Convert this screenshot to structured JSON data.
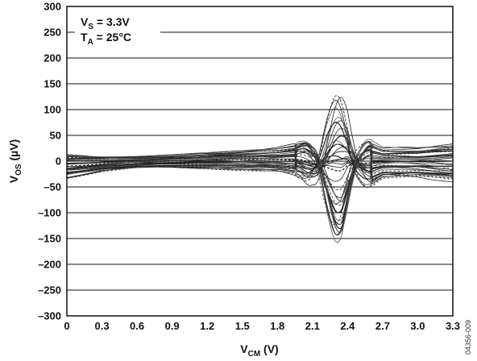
{
  "chart_data": {
    "type": "line",
    "title": "",
    "xlabel": {
      "main": "V",
      "sub": "CM",
      "unit": " (V)"
    },
    "ylabel": {
      "main": "V",
      "sub": "OS",
      "unit": " (µV)"
    },
    "xlim": [
      0,
      3.3
    ],
    "ylim": [
      -300,
      300
    ],
    "x_ticks": [
      "0",
      "0.3",
      "0.6",
      "0.9",
      "1.2",
      "1.5",
      "1.8",
      "2.1",
      "2.4",
      "2.7",
      "3.0",
      "3.3"
    ],
    "y_ticks": [
      "300",
      "250",
      "200",
      "150",
      "100",
      "50",
      "0",
      "–50",
      "–100",
      "–150",
      "–200",
      "–250",
      "–300"
    ],
    "grid": "horizontal",
    "annotation": {
      "line1": {
        "main": "V",
        "sub": "S",
        "rest": " = 3.3V"
      },
      "line2": {
        "main": "T",
        "sub": "A",
        "rest": " = 25°C"
      }
    },
    "figure_id": "04356-009",
    "series_count": 40,
    "envelope": {
      "x": [
        0,
        0.3,
        0.6,
        0.9,
        1.2,
        1.5,
        1.8,
        2.0,
        2.1,
        2.2,
        2.3,
        2.35,
        2.4,
        2.5,
        2.7,
        3.0,
        3.3
      ],
      "upper": [
        15,
        12,
        12,
        14,
        18,
        24,
        30,
        40,
        55,
        110,
        135,
        140,
        130,
        60,
        30,
        30,
        40
      ],
      "lower": [
        -35,
        -22,
        -15,
        -14,
        -16,
        -20,
        -25,
        -35,
        -65,
        -130,
        -165,
        -170,
        -140,
        -70,
        -35,
        -35,
        -45
      ]
    }
  }
}
